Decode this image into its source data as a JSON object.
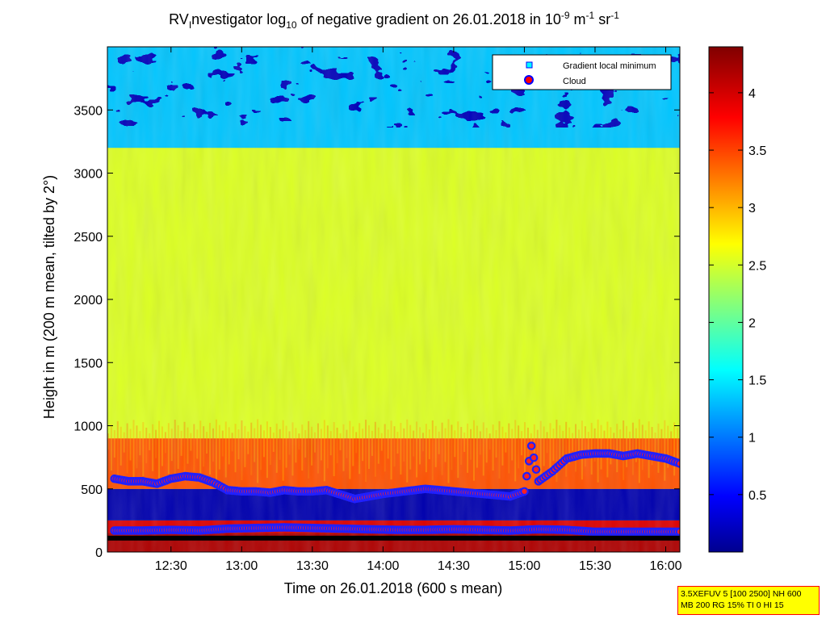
{
  "chart_data": {
    "type": "heatmap",
    "title": {
      "prefix": "RV",
      "prefix_sub": "I",
      "main": "nvestigator log",
      "main_sub": "10",
      "mid": " of negative gradient on 26.01.2018 in 10",
      "unit_sup1": "-9",
      "unit_mid": " m",
      "unit_sup2": "-1",
      "unit_end": " sr",
      "unit_sup3": "-1"
    },
    "xlabel": "Time on 26.01.2018 (600 s mean)",
    "ylabel": "Height in m (200 m mean, tilted by 2°)",
    "x_ticks": [
      "12:30",
      "13:00",
      "13:30",
      "14:00",
      "14:30",
      "15:00",
      "15:30",
      "16:00"
    ],
    "x_tick_values": [
      12.5,
      13.0,
      13.5,
      14.0,
      14.5,
      15.0,
      15.5,
      16.0
    ],
    "xlim": [
      12.05,
      16.1
    ],
    "y_ticks": [
      "0",
      "500",
      "1000",
      "1500",
      "2000",
      "2500",
      "3000",
      "3500"
    ],
    "y_tick_values": [
      0,
      500,
      1000,
      1500,
      2000,
      2500,
      3000,
      3500
    ],
    "ylim": [
      0,
      4000
    ],
    "colorbar": {
      "ticks": [
        "0.5",
        "1",
        "1.5",
        "2",
        "2.5",
        "3",
        "3.5",
        "4"
      ],
      "tick_values": [
        0.5,
        1,
        1.5,
        2,
        2.5,
        3,
        3.5,
        4
      ],
      "range": [
        0,
        4.4
      ],
      "colormap": "jet"
    },
    "legend": {
      "placement": "top-right",
      "entries": [
        {
          "label": "Gradient local minimum",
          "marker": "square",
          "color": "#00ffff"
        },
        {
          "label": "Cloud",
          "marker": "circle",
          "color": "#ff0000",
          "edge": "#0000ff"
        }
      ]
    },
    "field": {
      "description_values": [
        {
          "height_range": [
            0,
            150
          ],
          "value": 4.2
        },
        {
          "height_range": [
            150,
            250
          ],
          "value": 4.0
        },
        {
          "height_range": [
            250,
            500
          ],
          "value": 0.2
        },
        {
          "height_range": [
            500,
            900
          ],
          "value": 3.5
        },
        {
          "height_range": [
            900,
            3200
          ],
          "value": 2.6
        },
        {
          "height_range": [
            3200,
            4000
          ],
          "value": 1.4
        }
      ]
    },
    "cloud_layers": [
      {
        "name": "lower",
        "points": [
          [
            12.1,
            170
          ],
          [
            12.3,
            170
          ],
          [
            12.5,
            175
          ],
          [
            12.7,
            170
          ],
          [
            12.9,
            185
          ],
          [
            13.1,
            190
          ],
          [
            13.3,
            195
          ],
          [
            13.5,
            190
          ],
          [
            13.7,
            185
          ],
          [
            13.9,
            180
          ],
          [
            14.1,
            175
          ],
          [
            14.3,
            175
          ],
          [
            14.5,
            180
          ],
          [
            14.7,
            175
          ],
          [
            14.9,
            170
          ],
          [
            15.1,
            180
          ],
          [
            15.3,
            175
          ],
          [
            15.5,
            160
          ],
          [
            15.7,
            160
          ],
          [
            15.9,
            160
          ],
          [
            16.1,
            160
          ]
        ]
      },
      {
        "name": "upper",
        "points": [
          [
            12.1,
            580
          ],
          [
            12.2,
            560
          ],
          [
            12.3,
            560
          ],
          [
            12.4,
            540
          ],
          [
            12.5,
            580
          ],
          [
            12.6,
            600
          ],
          [
            12.7,
            590
          ],
          [
            12.8,
            550
          ],
          [
            12.9,
            490
          ],
          [
            13.0,
            480
          ],
          [
            13.1,
            480
          ],
          [
            13.2,
            470
          ],
          [
            13.3,
            490
          ],
          [
            13.4,
            480
          ],
          [
            13.5,
            480
          ],
          [
            13.6,
            490
          ],
          [
            13.8,
            420
          ],
          [
            14.0,
            460
          ],
          [
            14.3,
            500
          ],
          [
            14.8,
            450
          ],
          [
            14.9,
            440
          ],
          [
            15.0,
            480
          ],
          [
            15.05,
            840
          ],
          [
            15.1,
            560
          ],
          [
            15.2,
            640
          ],
          [
            15.3,
            740
          ],
          [
            15.4,
            770
          ],
          [
            15.5,
            780
          ],
          [
            15.6,
            780
          ],
          [
            15.7,
            760
          ],
          [
            15.8,
            780
          ],
          [
            15.9,
            760
          ],
          [
            16.0,
            740
          ],
          [
            16.1,
            700
          ]
        ]
      }
    ],
    "gradient_minimum_height": 110
  },
  "parameter_box": {
    "line1": "3.5XEFUV 5 [100 2500] NH 600",
    "line2": "MB 200 RG 15% TI 0 HI 15"
  }
}
